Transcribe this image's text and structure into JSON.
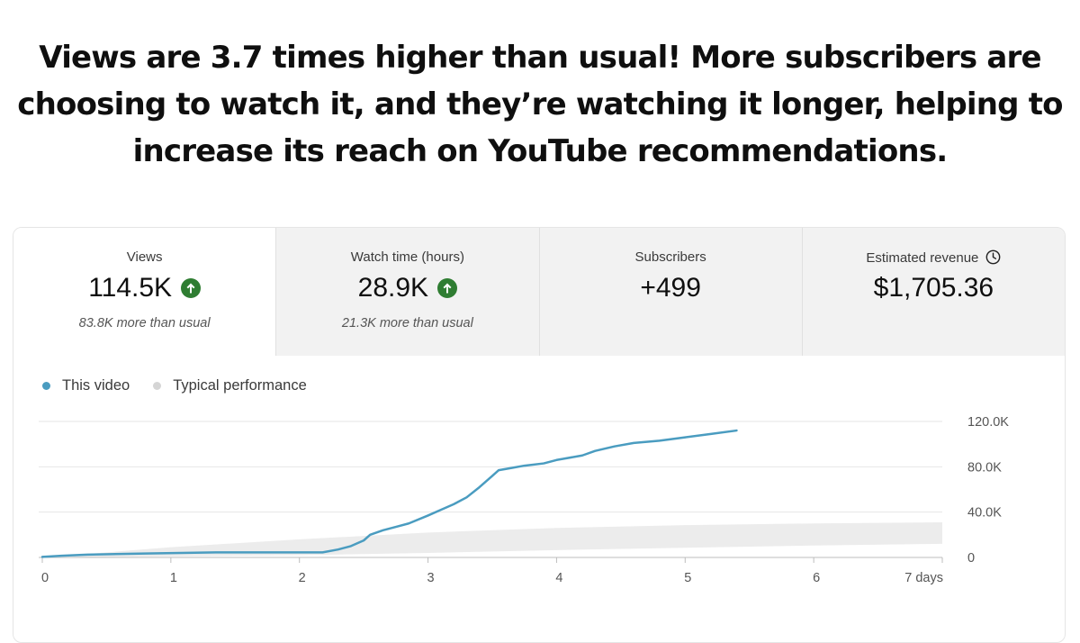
{
  "headline": {
    "line1": "Views are 3.7 times higher than usual! More subscribers are",
    "line2": "choosing to watch it, and they’re watching it longer, helping to",
    "line3": "increase its reach on YouTube recommendations."
  },
  "metrics": [
    {
      "label": "Views",
      "value": "114.5K",
      "sub": "83.8K more than usual",
      "icon": "arrow-up-circle-icon",
      "selected": true
    },
    {
      "label": "Watch time (hours)",
      "value": "28.9K",
      "sub": "21.3K more than usual",
      "icon": "arrow-up-circle-icon",
      "selected": false
    },
    {
      "label": "Subscribers",
      "value": "+499",
      "sub": "",
      "icon": "",
      "selected": false
    },
    {
      "label": "Estimated revenue",
      "value": "$1,705.36",
      "sub": "",
      "icon": "clock-icon",
      "selected": false
    }
  ],
  "legend": {
    "this_video": "This video",
    "typical": "Typical performance"
  },
  "colors": {
    "this_video": "#4a9cc0",
    "typical_band": "#ececec",
    "typical_dot": "#d5d5d5",
    "up_icon": "#2f7d32",
    "grid": "#e6e6e6"
  },
  "chart_data": {
    "type": "line",
    "x_tick_labels": [
      "0",
      "1",
      "2",
      "3",
      "4",
      "5",
      "6",
      "7 days"
    ],
    "y_tick_labels": [
      "120.0K",
      "80.0K",
      "40.0K",
      "0"
    ],
    "xlim": [
      0,
      7
    ],
    "ylim": [
      0,
      120000
    ],
    "series": [
      {
        "name": "This video",
        "x": [
          0,
          0.15,
          0.35,
          0.8,
          1.35,
          2.0,
          2.18,
          2.3,
          2.4,
          2.5,
          2.55,
          2.65,
          2.75,
          2.85,
          3.0,
          3.1,
          3.2,
          3.3,
          3.4,
          3.5,
          3.55,
          3.65,
          3.75,
          3.9,
          4.0,
          4.2,
          4.3,
          4.45,
          4.6,
          4.8,
          5.0,
          5.2,
          5.4
        ],
        "y": [
          500,
          1500,
          2500,
          3500,
          4500,
          4500,
          4500,
          7000,
          10000,
          15000,
          20000,
          24000,
          27000,
          30000,
          37000,
          42000,
          47000,
          53000,
          62000,
          72000,
          77000,
          79000,
          81000,
          83000,
          86000,
          90000,
          94000,
          98000,
          101000,
          103000,
          106000,
          109000,
          112000
        ]
      },
      {
        "name": "Typical performance",
        "x": [
          0,
          1,
          2,
          3,
          4,
          5,
          6,
          7
        ],
        "y_low": [
          0,
          1000,
          2000,
          4000,
          6500,
          8500,
          10500,
          12000
        ],
        "y_high": [
          0,
          9000,
          16000,
          22000,
          26000,
          28500,
          30000,
          31000
        ]
      }
    ],
    "grid": true,
    "legend_position": "top-left",
    "y_axis_side": "right"
  }
}
